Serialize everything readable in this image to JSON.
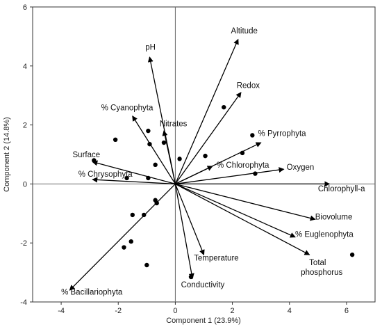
{
  "chart_data": {
    "type": "scatter",
    "subtype": "pca-biplot",
    "xlabel": "Component 1 (23.9%)",
    "ylabel": "Component 2 (14.8%)",
    "xlim": [
      -5,
      7
    ],
    "ylim": [
      -4,
      6
    ],
    "x_ticks": [
      -4,
      -2,
      0,
      2,
      4,
      6
    ],
    "y_ticks": [
      -4,
      -2,
      0,
      2,
      4,
      6
    ],
    "grid": false,
    "zero_lines": true,
    "arrow_color": "#000000",
    "point_color": "#000000",
    "loadings": [
      {
        "name": "Altitude",
        "x": 2.2,
        "y": 4.9,
        "label_x": 1.95,
        "label_y": 5.1
      },
      {
        "name": "pH",
        "x": -0.9,
        "y": 4.3,
        "label_x": -1.05,
        "label_y": 4.55
      },
      {
        "name": "Redox",
        "x": 2.3,
        "y": 3.1,
        "label_x": 2.15,
        "label_y": 3.25
      },
      {
        "name": "% Cyanophyta",
        "x": -1.5,
        "y": 2.3,
        "label_x": -2.6,
        "label_y": 2.5
      },
      {
        "name": "Nitrates",
        "x": -0.4,
        "y": 1.8,
        "label_x": -0.55,
        "label_y": 1.95
      },
      {
        "name": "% Pyrrophyta",
        "x": 3.0,
        "y": 1.4,
        "label_x": 2.9,
        "label_y": 1.62
      },
      {
        "name": "% Chlorophyta",
        "x": 1.3,
        "y": 0.6,
        "label_x": 1.45,
        "label_y": 0.55
      },
      {
        "name": "Oxygen",
        "x": 3.8,
        "y": 0.5,
        "label_x": 3.9,
        "label_y": 0.48
      },
      {
        "name": "Surface",
        "x": -2.9,
        "y": 0.75,
        "label_x": -3.6,
        "label_y": 0.9
      },
      {
        "name": "% Chrysophyta",
        "x": -2.9,
        "y": 0.15,
        "label_x": -3.4,
        "label_y": 0.25
      },
      {
        "name": "Chlorophyll-a",
        "x": 5.4,
        "y": 0.0,
        "label_x": 5.0,
        "label_y": -0.25
      },
      {
        "name": "Biovolume",
        "x": 4.9,
        "y": -1.2,
        "label_x": 4.9,
        "label_y": -1.2
      },
      {
        "name": "% Euglenophyta",
        "x": 4.2,
        "y": -1.8,
        "label_x": 4.2,
        "label_y": -1.8
      },
      {
        "name": "Total phosphorus",
        "label_lines": [
          "Total",
          "phosphorus"
        ],
        "x": 4.7,
        "y": -2.4,
        "label_x": 4.4,
        "label_y": -2.75
      },
      {
        "name": "Temperature",
        "x": 1.0,
        "y": -2.4,
        "label_x": 0.65,
        "label_y": -2.6
      },
      {
        "name": "Conductivity",
        "x": 0.6,
        "y": -3.2,
        "label_x": 0.2,
        "label_y": -3.5
      },
      {
        "name": "% Bacillariophyta",
        "x": -3.7,
        "y": -3.6,
        "label_x": -4.0,
        "label_y": -3.75
      }
    ],
    "scores": [
      {
        "x": 1.7,
        "y": 2.6
      },
      {
        "x": 2.7,
        "y": 1.65
      },
      {
        "x": 2.35,
        "y": 1.05
      },
      {
        "x": 2.8,
        "y": 0.35
      },
      {
        "x": 1.05,
        "y": 0.95
      },
      {
        "x": -2.1,
        "y": 1.5
      },
      {
        "x": -0.95,
        "y": 1.8
      },
      {
        "x": -0.9,
        "y": 1.35
      },
      {
        "x": -0.4,
        "y": 1.4
      },
      {
        "x": 0.15,
        "y": 0.85
      },
      {
        "x": -0.7,
        "y": 0.65
      },
      {
        "x": -2.85,
        "y": 0.8
      },
      {
        "x": -1.7,
        "y": 0.2
      },
      {
        "x": -0.95,
        "y": 0.2
      },
      {
        "x": -0.7,
        "y": -0.55
      },
      {
        "x": -0.65,
        "y": -0.65
      },
      {
        "x": -1.1,
        "y": -1.05
      },
      {
        "x": -1.5,
        "y": -1.05
      },
      {
        "x": -1.55,
        "y": -1.95
      },
      {
        "x": -1.8,
        "y": -2.15
      },
      {
        "x": -1.0,
        "y": -2.75
      },
      {
        "x": 0.55,
        "y": -3.15
      },
      {
        "x": 6.2,
        "y": -2.4
      }
    ]
  }
}
